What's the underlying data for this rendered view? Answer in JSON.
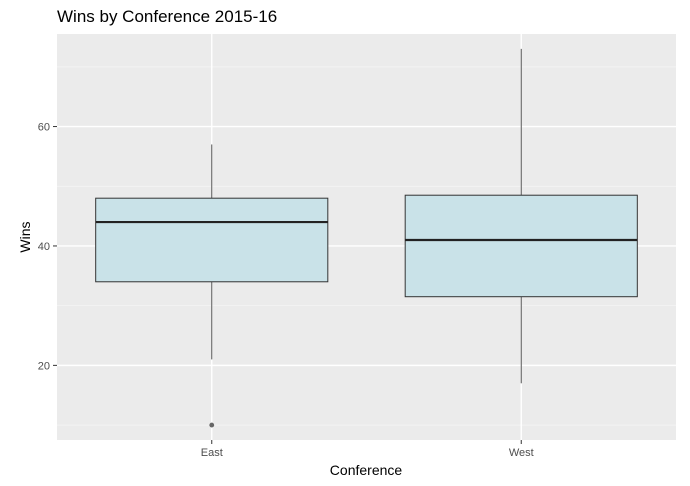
{
  "chart_data": {
    "type": "boxplot",
    "title": "Wins by Conference 2015-16",
    "xlabel": "Conference",
    "ylabel": "Wins",
    "categories": [
      "East",
      "West"
    ],
    "boxes": [
      {
        "category": "East",
        "whisker_low": 21,
        "q1": 34,
        "median": 44,
        "q3": 48,
        "whisker_high": 57,
        "outliers": [
          10
        ]
      },
      {
        "category": "West",
        "whisker_low": 17,
        "q1": 31.5,
        "median": 41,
        "q3": 48.5,
        "whisker_high": 73,
        "outliers": []
      }
    ],
    "y_ticks": [
      20,
      40,
      60
    ],
    "ylim": [
      7.5,
      75.5
    ],
    "grid": true,
    "legend": "none",
    "colors": {
      "panel_background": "#ebebeb",
      "grid_major": "#ffffff",
      "grid_minor": "#f5f5f5",
      "box_fill": "#c9e2e8",
      "box_stroke": "#333333",
      "median_stroke": "#222222",
      "whisker": "#555555",
      "outlier": "#666666"
    }
  }
}
